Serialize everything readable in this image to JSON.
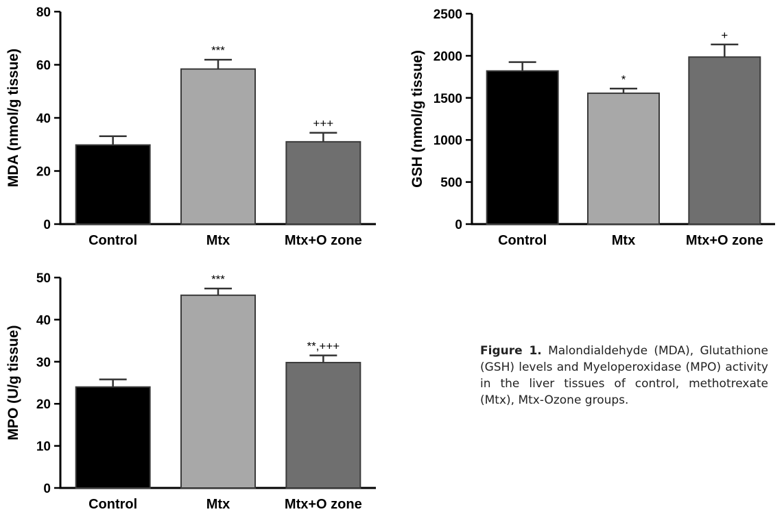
{
  "chart_data": [
    {
      "type": "bar",
      "categories": [
        "Control",
        "Mtx",
        "Mtx+O zone"
      ],
      "values": [
        29.8,
        58.4,
        31.0
      ],
      "errors": [
        3.3,
        3.5,
        3.4
      ],
      "significance": [
        "",
        "***",
        "+++"
      ],
      "colors": [
        "#000000",
        "#a8a8a8",
        "#6f6f6f"
      ],
      "ylabel": "MDA (nmol/g tissue)",
      "ylim": [
        0,
        80
      ],
      "yticks": [
        "0",
        "20",
        "40",
        "60",
        "80"
      ]
    },
    {
      "type": "bar",
      "categories": [
        "Control",
        "Mtx",
        "Mtx+O zone"
      ],
      "values": [
        1820,
        1555,
        1985
      ],
      "errors": [
        105,
        55,
        150
      ],
      "significance": [
        "",
        "*",
        "+"
      ],
      "colors": [
        "#000000",
        "#a8a8a8",
        "#6f6f6f"
      ],
      "ylabel": "GSH (nmol/g tissue)",
      "ylim": [
        0,
        2500
      ],
      "yticks": [
        "0",
        "500",
        "1000",
        "1500",
        "2000",
        "2500"
      ]
    },
    {
      "type": "bar",
      "categories": [
        "Control",
        "Mtx",
        "Mtx+O zone"
      ],
      "values": [
        24.0,
        45.8,
        29.8
      ],
      "errors": [
        1.8,
        1.6,
        1.7
      ],
      "significance": [
        "",
        "***",
        "**,+++"
      ],
      "colors": [
        "#000000",
        "#a8a8a8",
        "#6f6f6f"
      ],
      "ylabel": "MPO (U/g tissue)",
      "ylim": [
        0,
        50
      ],
      "yticks": [
        "0",
        "10",
        "20",
        "30",
        "40",
        "50"
      ]
    }
  ],
  "caption": {
    "label": "Figure 1.",
    "text": "Malondialdehyde (MDA), Glutathione (GSH) levels and Myeloperoxidase (MPO) activity in the liver tissues of control, methotrexate (Mtx), Mtx-Ozone groups."
  }
}
